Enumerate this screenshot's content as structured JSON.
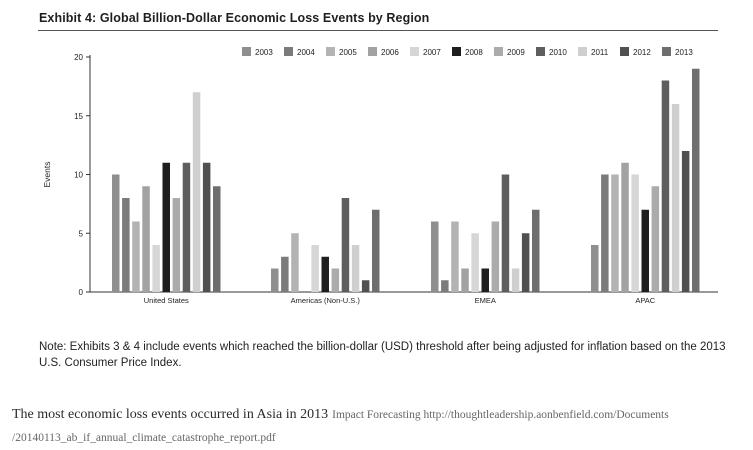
{
  "exhibit": {
    "title": "Exhibit 4: Global Billion-Dollar Economic Loss Events by Region",
    "note": "Note: Exhibits 3 & 4 include events which reached the billion-dollar (USD) threshold after being adjusted for inflation based on the 2013 U.S. Consumer Price Index."
  },
  "caption": {
    "text": "The most economic loss events occurred in Asia in 2013",
    "source": "Impact Forecasting http://thoughtleadership.aonbenfield.com/Documents /20140113_ab_if_annual_climate_catastrophe_report.pdf"
  },
  "chart_data": {
    "type": "bar",
    "title": "Exhibit 4: Global Billion-Dollar Economic Loss Events by Region",
    "xlabel": "",
    "ylabel": "Events",
    "ylim": [
      0,
      20
    ],
    "yticks": [
      0,
      5,
      10,
      15,
      20
    ],
    "grid": false,
    "legend_position": "top",
    "categories": [
      "United States",
      "Americas (Non-U.S.)",
      "EMEA",
      "APAC"
    ],
    "series": [
      {
        "name": "2003",
        "color": "#8f8f8f",
        "values": [
          10,
          2,
          6,
          4
        ]
      },
      {
        "name": "2004",
        "color": "#7b7b7b",
        "values": [
          8,
          3,
          1,
          10
        ]
      },
      {
        "name": "2005",
        "color": "#b3b3b3",
        "values": [
          6,
          5,
          6,
          10
        ]
      },
      {
        "name": "2006",
        "color": "#a2a2a2",
        "values": [
          9,
          0,
          2,
          11
        ]
      },
      {
        "name": "2007",
        "color": "#d6d6d6",
        "values": [
          4,
          4,
          5,
          10
        ]
      },
      {
        "name": "2008",
        "color": "#1e1e1e",
        "values": [
          11,
          3,
          2,
          7
        ]
      },
      {
        "name": "2009",
        "color": "#ababab",
        "values": [
          8,
          2,
          6,
          9
        ]
      },
      {
        "name": "2010",
        "color": "#5e5e5e",
        "values": [
          11,
          8,
          10,
          18
        ]
      },
      {
        "name": "2011",
        "color": "#cfcfcf",
        "values": [
          17,
          4,
          2,
          16
        ]
      },
      {
        "name": "2012",
        "color": "#505050",
        "values": [
          11,
          1,
          5,
          12
        ]
      },
      {
        "name": "2013",
        "color": "#6e6e6e",
        "values": [
          9,
          7,
          7,
          19
        ]
      }
    ]
  }
}
